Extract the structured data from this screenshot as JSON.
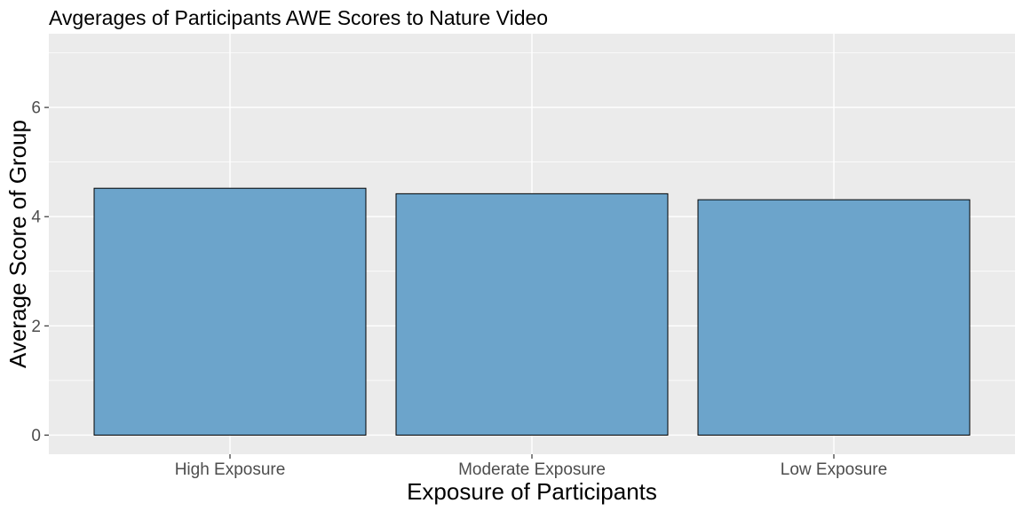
{
  "chart_data": {
    "type": "bar",
    "title": "Avgerages of Participants AWE Scores to Nature Video",
    "xlabel": "Exposure of Participants",
    "ylabel": "Average Score of Group",
    "categories": [
      "High Exposure",
      "Moderate Exposure",
      "Low Exposure"
    ],
    "values": [
      4.52,
      4.42,
      4.31
    ],
    "ylim": [
      -0.35,
      7.35
    ],
    "yticks": [
      0,
      2,
      4,
      6
    ],
    "grid": true,
    "legend": "none",
    "colors": {
      "bar_fill": "#6ca4cb",
      "bar_outline": "#000000",
      "panel_background": "#ebebeb",
      "grid": "#ffffff",
      "tick_text": "#4d4d4d",
      "axis_tick": "#333333"
    }
  }
}
